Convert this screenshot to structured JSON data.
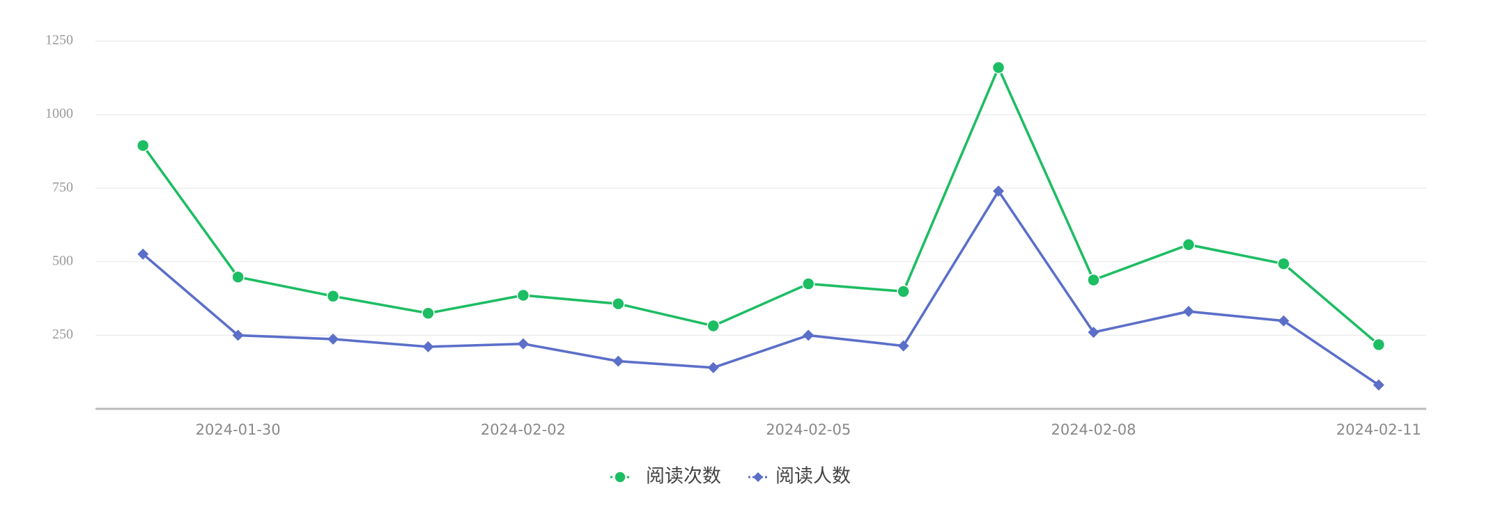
{
  "chart_data": {
    "type": "line",
    "categories": [
      null,
      "2024-01-30",
      null,
      null,
      "2024-02-02",
      null,
      null,
      "2024-02-05",
      null,
      null,
      "2024-02-08",
      null,
      null,
      "2024-02-11"
    ],
    "series": [
      {
        "name": "阅读次数",
        "color": "#1dbd63",
        "marker": "circle",
        "values": [
          895,
          448,
          383,
          325,
          386,
          357,
          282,
          425,
          399,
          1160,
          438,
          558,
          493,
          218
        ]
      },
      {
        "name": "阅读人数",
        "color": "#5b6fc9",
        "marker": "diamond",
        "values": [
          526,
          250,
          237,
          211,
          221,
          162,
          140,
          250,
          214,
          740,
          260,
          331,
          299,
          81
        ]
      }
    ],
    "ylim": [
      0,
      1250
    ],
    "yticks": [
      250,
      500,
      750,
      1000,
      1250
    ],
    "grid": true,
    "legend": "bottom"
  }
}
